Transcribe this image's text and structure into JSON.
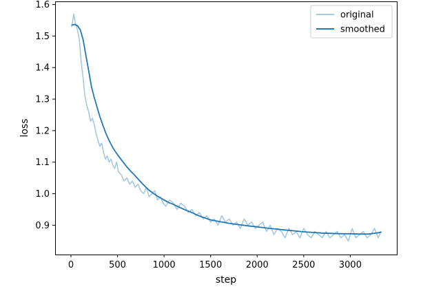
{
  "chart_data": {
    "type": "line",
    "title": "",
    "xlabel": "step",
    "ylabel": "loss",
    "xlim": [
      -170,
      3500
    ],
    "ylim": [
      0.807,
      1.61
    ],
    "xticks": [
      0,
      500,
      1000,
      1500,
      2000,
      2500,
      3000
    ],
    "yticks": [
      0.9,
      1.0,
      1.1,
      1.2,
      1.3,
      1.4,
      1.5,
      1.6
    ],
    "xtick_labels": [
      "0",
      "500",
      "1000",
      "1500",
      "2000",
      "2500",
      "3000"
    ],
    "ytick_labels": [
      "0.9",
      "1.0",
      "1.1",
      "1.2",
      "1.3",
      "1.4",
      "1.5",
      "1.6"
    ],
    "grid": false,
    "legend_position": "top-right",
    "series": [
      {
        "name": "original",
        "color": "#a6c8e0",
        "x": [
          10,
          30,
          50,
          70,
          90,
          110,
          130,
          150,
          170,
          190,
          210,
          230,
          250,
          270,
          290,
          310,
          330,
          350,
          370,
          390,
          410,
          430,
          450,
          470,
          490,
          510,
          540,
          570,
          600,
          630,
          660,
          690,
          720,
          750,
          780,
          810,
          840,
          870,
          900,
          930,
          960,
          990,
          1020,
          1060,
          1100,
          1140,
          1180,
          1220,
          1260,
          1300,
          1340,
          1380,
          1420,
          1460,
          1500,
          1540,
          1580,
          1620,
          1660,
          1700,
          1740,
          1780,
          1820,
          1860,
          1900,
          1940,
          1980,
          2020,
          2060,
          2100,
          2140,
          2180,
          2220,
          2260,
          2300,
          2340,
          2380,
          2420,
          2460,
          2500,
          2540,
          2580,
          2620,
          2660,
          2700,
          2740,
          2780,
          2820,
          2860,
          2900,
          2940,
          2980,
          3020,
          3060,
          3100,
          3140,
          3180,
          3220,
          3260,
          3300,
          3330
        ],
        "values": [
          1.53,
          1.57,
          1.54,
          1.52,
          1.49,
          1.42,
          1.37,
          1.31,
          1.28,
          1.26,
          1.23,
          1.24,
          1.22,
          1.19,
          1.17,
          1.15,
          1.16,
          1.13,
          1.11,
          1.12,
          1.1,
          1.11,
          1.09,
          1.08,
          1.1,
          1.07,
          1.06,
          1.04,
          1.05,
          1.03,
          1.04,
          1.02,
          1.03,
          1.01,
          1.0,
          1.02,
          0.99,
          1.0,
          1.01,
          0.98,
          0.99,
          0.97,
          0.96,
          0.98,
          0.97,
          0.95,
          0.97,
          0.96,
          0.94,
          0.95,
          0.93,
          0.94,
          0.92,
          0.93,
          0.91,
          0.92,
          0.9,
          0.93,
          0.91,
          0.92,
          0.9,
          0.91,
          0.89,
          0.92,
          0.9,
          0.91,
          0.89,
          0.9,
          0.91,
          0.88,
          0.9,
          0.87,
          0.89,
          0.88,
          0.86,
          0.89,
          0.87,
          0.88,
          0.86,
          0.89,
          0.87,
          0.86,
          0.88,
          0.87,
          0.86,
          0.88,
          0.86,
          0.87,
          0.88,
          0.86,
          0.87,
          0.85,
          0.89,
          0.86,
          0.87,
          0.88,
          0.86,
          0.87,
          0.89,
          0.86,
          0.88
        ]
      },
      {
        "name": "smoothed",
        "color": "#1f77b4",
        "x": [
          10,
          40,
          70,
          100,
          130,
          160,
          190,
          220,
          250,
          280,
          310,
          340,
          370,
          400,
          430,
          460,
          490,
          520,
          560,
          600,
          640,
          680,
          720,
          760,
          800,
          840,
          880,
          920,
          960,
          1000,
          1050,
          1100,
          1150,
          1200,
          1250,
          1300,
          1350,
          1400,
          1450,
          1500,
          1600,
          1700,
          1800,
          1900,
          2000,
          2100,
          2200,
          2300,
          2400,
          2500,
          2600,
          2700,
          2800,
          2900,
          3000,
          3100,
          3200,
          3300,
          3330
        ],
        "values": [
          1.535,
          1.537,
          1.533,
          1.52,
          1.49,
          1.44,
          1.39,
          1.34,
          1.305,
          1.275,
          1.245,
          1.22,
          1.195,
          1.175,
          1.157,
          1.141,
          1.128,
          1.116,
          1.1,
          1.085,
          1.072,
          1.06,
          1.047,
          1.034,
          1.022,
          1.011,
          1.002,
          0.994,
          0.987,
          0.98,
          0.972,
          0.966,
          0.959,
          0.952,
          0.946,
          0.94,
          0.933,
          0.927,
          0.922,
          0.917,
          0.911,
          0.906,
          0.902,
          0.898,
          0.895,
          0.891,
          0.888,
          0.885,
          0.882,
          0.879,
          0.877,
          0.875,
          0.874,
          0.873,
          0.873,
          0.872,
          0.872,
          0.876,
          0.878
        ]
      }
    ]
  }
}
